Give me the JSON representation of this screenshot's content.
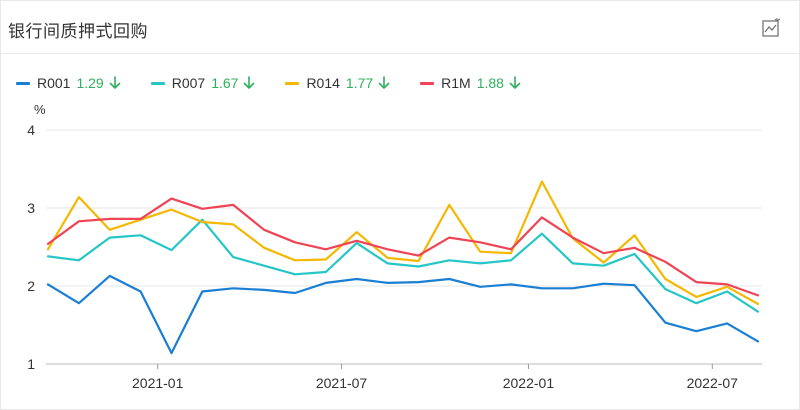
{
  "header": {
    "title": "银行间质押式回购",
    "chart_icon": "trend-chart-icon"
  },
  "legend": {
    "arrow_icon": "arrow-down-icon",
    "items": [
      {
        "name": "R001",
        "value": "1.29",
        "color": "#1a7fd4"
      },
      {
        "name": "R007",
        "value": "1.67",
        "color": "#26c6c6"
      },
      {
        "name": "R014",
        "value": "1.77",
        "color": "#f5b800"
      },
      {
        "name": "R1M",
        "value": "1.88",
        "color": "#ee4455"
      }
    ],
    "value_color": "#2db15d"
  },
  "chart_data": {
    "type": "line",
    "ylabel": "%",
    "ylim": [
      1,
      4
    ],
    "yticks": [
      "1",
      "2",
      "3",
      "4"
    ],
    "x": [
      "2020-09-15",
      "2020-10-15",
      "2020-11-15",
      "2020-12-15",
      "2021-01-15",
      "2021-02-15",
      "2021-03-15",
      "2021-04-15",
      "2021-05-15",
      "2021-06-15",
      "2021-07-15",
      "2021-08-15",
      "2021-09-15",
      "2021-10-15",
      "2021-11-15",
      "2021-12-15",
      "2022-01-15",
      "2022-02-15",
      "2022-03-15",
      "2022-04-15",
      "2022-05-15",
      "2022-06-15",
      "2022-07-15",
      "2022-08-15"
    ],
    "xticks": [
      "2021-01",
      "2021-07",
      "2022-01",
      "2022-07"
    ],
    "grid": true,
    "series": [
      {
        "name": "R001",
        "color": "#1a7fd4",
        "values": [
          2.02,
          1.78,
          2.13,
          1.93,
          1.14,
          1.93,
          1.97,
          1.95,
          1.91,
          2.04,
          2.09,
          2.04,
          2.05,
          2.09,
          1.99,
          2.02,
          1.97,
          1.97,
          2.03,
          2.01,
          1.53,
          1.42,
          1.52,
          1.29
        ]
      },
      {
        "name": "R007",
        "color": "#26c6c6",
        "values": [
          2.38,
          2.33,
          2.62,
          2.65,
          2.46,
          2.85,
          2.37,
          2.26,
          2.15,
          2.18,
          2.55,
          2.29,
          2.25,
          2.33,
          2.29,
          2.33,
          2.67,
          2.29,
          2.26,
          2.41,
          1.96,
          1.78,
          1.93,
          1.67
        ]
      },
      {
        "name": "R014",
        "color": "#f5b800",
        "values": [
          2.47,
          3.14,
          2.72,
          2.85,
          2.98,
          2.82,
          2.79,
          2.49,
          2.33,
          2.34,
          2.69,
          2.36,
          2.32,
          3.04,
          2.44,
          2.42,
          3.34,
          2.61,
          2.3,
          2.65,
          2.09,
          1.86,
          1.99,
          1.77
        ]
      },
      {
        "name": "R1M",
        "color": "#ee4455",
        "values": [
          2.54,
          2.83,
          2.86,
          2.86,
          3.12,
          2.99,
          3.04,
          2.72,
          2.56,
          2.47,
          2.58,
          2.47,
          2.39,
          2.62,
          2.56,
          2.47,
          2.88,
          2.62,
          2.42,
          2.49,
          2.31,
          2.05,
          2.02,
          1.88
        ]
      }
    ]
  }
}
